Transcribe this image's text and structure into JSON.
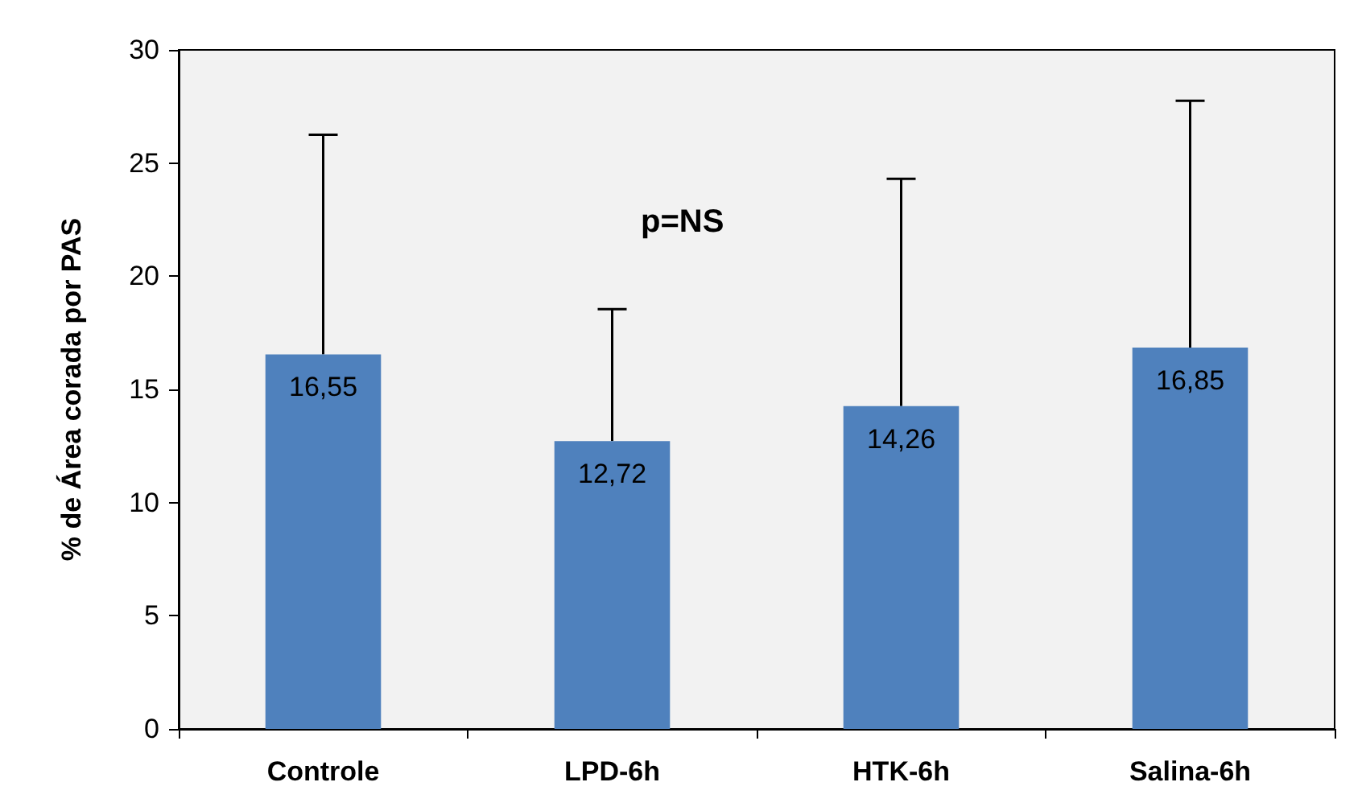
{
  "chart_data": {
    "type": "bar",
    "ylabel": "% de Área corada por PAS",
    "categories": [
      "Controle",
      "LPD-6h",
      "HTK-6h",
      "Salina-6h"
    ],
    "values": [
      16.55,
      12.72,
      14.26,
      16.85
    ],
    "color": "#4f81bd",
    "errors": [
      [
        16.55,
        26.25
      ],
      [
        12.72,
        18.55
      ],
      [
        14.26,
        24.3
      ],
      [
        16.85,
        27.75
      ]
    ],
    "value_labels": [
      "16,55",
      "12,72",
      "14,26",
      "16,85"
    ],
    "ylim": [
      0,
      30
    ],
    "yticks": [
      0,
      5,
      10,
      15,
      20,
      25,
      30
    ],
    "grid": false,
    "annotations": [
      "p=NS"
    ]
  }
}
